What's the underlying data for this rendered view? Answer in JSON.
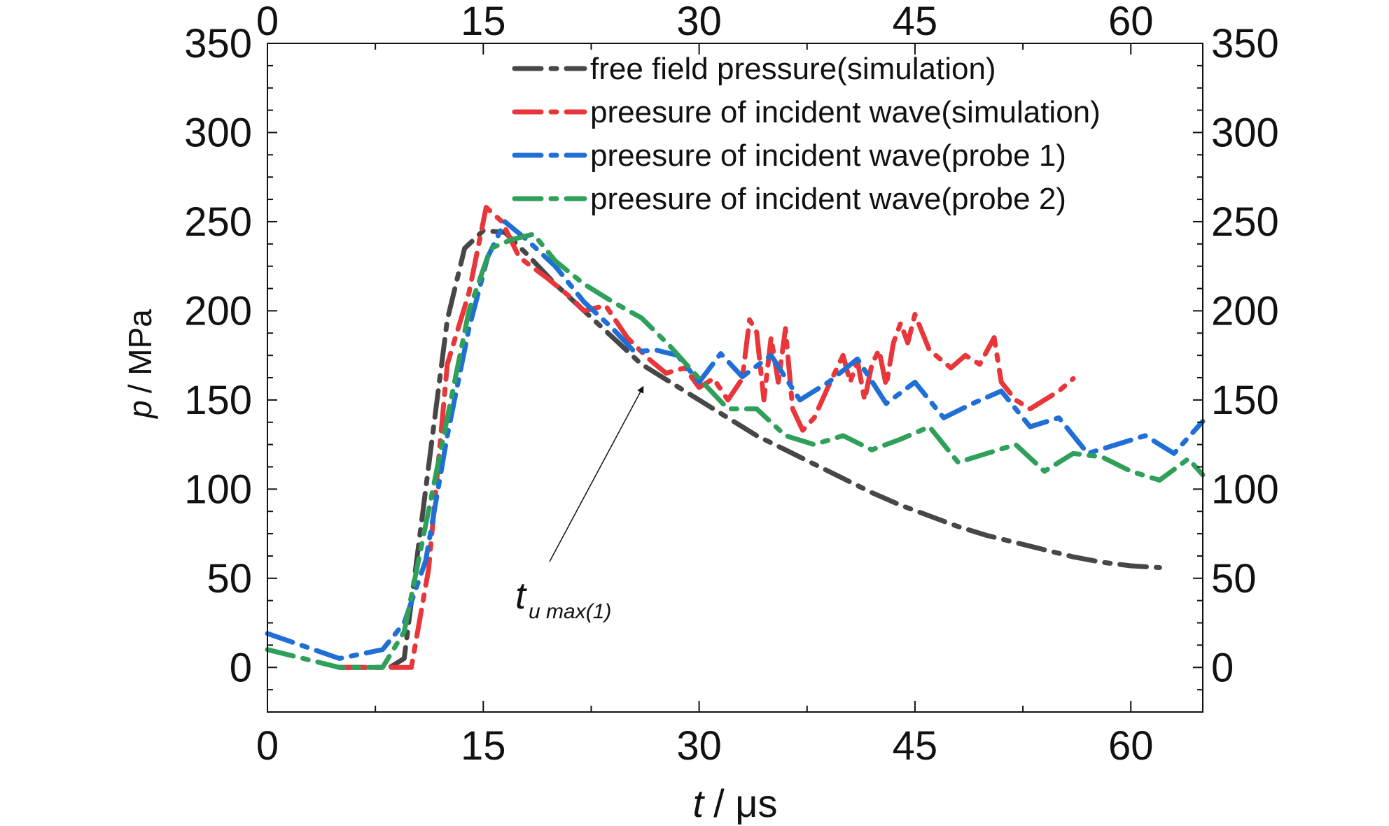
{
  "chart_data": {
    "type": "line",
    "title": "",
    "xlabel": {
      "var": "t",
      "unit": "/ μs"
    },
    "ylabel": {
      "var": "p",
      "unit": "/ MPa"
    },
    "xlim": [
      0,
      65
    ],
    "ylim": [
      -25,
      350
    ],
    "x_ticks": [
      "0",
      "15",
      "30",
      "45",
      "60"
    ],
    "x_tick_values": [
      0,
      15,
      30,
      45,
      60
    ],
    "y_ticks": [
      "0",
      "50",
      "100",
      "150",
      "200",
      "250",
      "300",
      "350"
    ],
    "y_tick_values": [
      0,
      50,
      100,
      150,
      200,
      250,
      300,
      350
    ],
    "grid": false,
    "legend_position": "top-center",
    "series": [
      {
        "name": "free field pressure(simulation)",
        "color": "#474747",
        "x": [
          5,
          8.5,
          9.5,
          11,
          12.5,
          13.7,
          15,
          16.5,
          18,
          20,
          22,
          24,
          26,
          28,
          30,
          32,
          34,
          36,
          38,
          40,
          42,
          44,
          46,
          48,
          50,
          52,
          54,
          56,
          58,
          60,
          62
        ],
        "y": [
          0,
          0,
          5,
          100,
          195,
          235,
          245,
          244,
          232,
          215,
          200,
          185,
          170,
          160,
          150,
          140,
          130,
          122,
          114,
          106,
          98,
          91,
          85,
          79,
          74,
          70,
          66,
          62,
          59,
          57,
          56
        ]
      },
      {
        "name": "preesure of incident wave(simulation)",
        "color": "#e8363a",
        "x": [
          5,
          10,
          11.2,
          12.5,
          14,
          15.2,
          16.3,
          17.5,
          19.5,
          21,
          22,
          23.5,
          25,
          26.5,
          27.7,
          29,
          30,
          31,
          32,
          33,
          33.5,
          34,
          34.5,
          35,
          35.5,
          36,
          36.5,
          37.2,
          38,
          39,
          40,
          40.5,
          41,
          41.5,
          42,
          42.5,
          43,
          43.5,
          44,
          44.5,
          45,
          46,
          47.5,
          48.5,
          49.5,
          50.5,
          51,
          52,
          53,
          54,
          55,
          56
        ],
        "y": [
          0,
          0,
          55,
          170,
          210,
          258,
          250,
          230,
          218,
          208,
          200,
          203,
          185,
          173,
          165,
          168,
          157,
          162,
          150,
          162,
          195,
          188,
          150,
          185,
          160,
          190,
          145,
          133,
          140,
          158,
          175,
          160,
          172,
          150,
          170,
          178,
          158,
          182,
          193,
          182,
          198,
          178,
          168,
          175,
          170,
          185,
          160,
          150,
          145,
          150,
          155,
          162
        ]
      },
      {
        "name": "preesure of incident wave(probe 1)",
        "color": "#1f6fd6",
        "x": [
          0,
          5,
          8,
          9.5,
          11,
          12.5,
          14,
          15.3,
          16.5,
          18,
          20,
          22,
          24,
          25.5,
          27,
          28.5,
          30,
          31.5,
          33,
          35,
          37,
          39,
          41,
          43,
          45,
          47,
          49,
          51,
          53,
          55,
          57,
          59,
          61,
          63,
          65
        ],
        "y": [
          19,
          5,
          10,
          25,
          60,
          130,
          190,
          230,
          250,
          240,
          225,
          205,
          190,
          177,
          178,
          175,
          160,
          176,
          163,
          175,
          150,
          160,
          173,
          148,
          160,
          140,
          148,
          155,
          135,
          140,
          120,
          125,
          130,
          120,
          138
        ]
      },
      {
        "name": "preesure of incident wave(probe 2)",
        "color": "#2fa05a",
        "x": [
          0,
          5,
          8,
          9.5,
          11,
          12.5,
          14,
          15.5,
          17,
          18.5,
          20,
          22,
          24,
          26,
          28,
          30,
          32,
          34,
          36,
          38,
          40,
          42,
          44,
          46,
          48,
          50,
          52,
          54,
          56,
          58,
          60,
          62,
          64,
          65
        ],
        "y": [
          10,
          0,
          0,
          20,
          80,
          140,
          200,
          235,
          240,
          243,
          228,
          215,
          205,
          196,
          180,
          162,
          145,
          145,
          130,
          125,
          130,
          122,
          128,
          135,
          115,
          120,
          125,
          110,
          120,
          118,
          110,
          105,
          117,
          108
        ]
      }
    ],
    "annotations": [
      {
        "text_main": "t",
        "text_sub": "u max(1)",
        "arrow_to": [
          26,
          158
        ],
        "label_at": [
          26,
          42
        ]
      }
    ]
  }
}
